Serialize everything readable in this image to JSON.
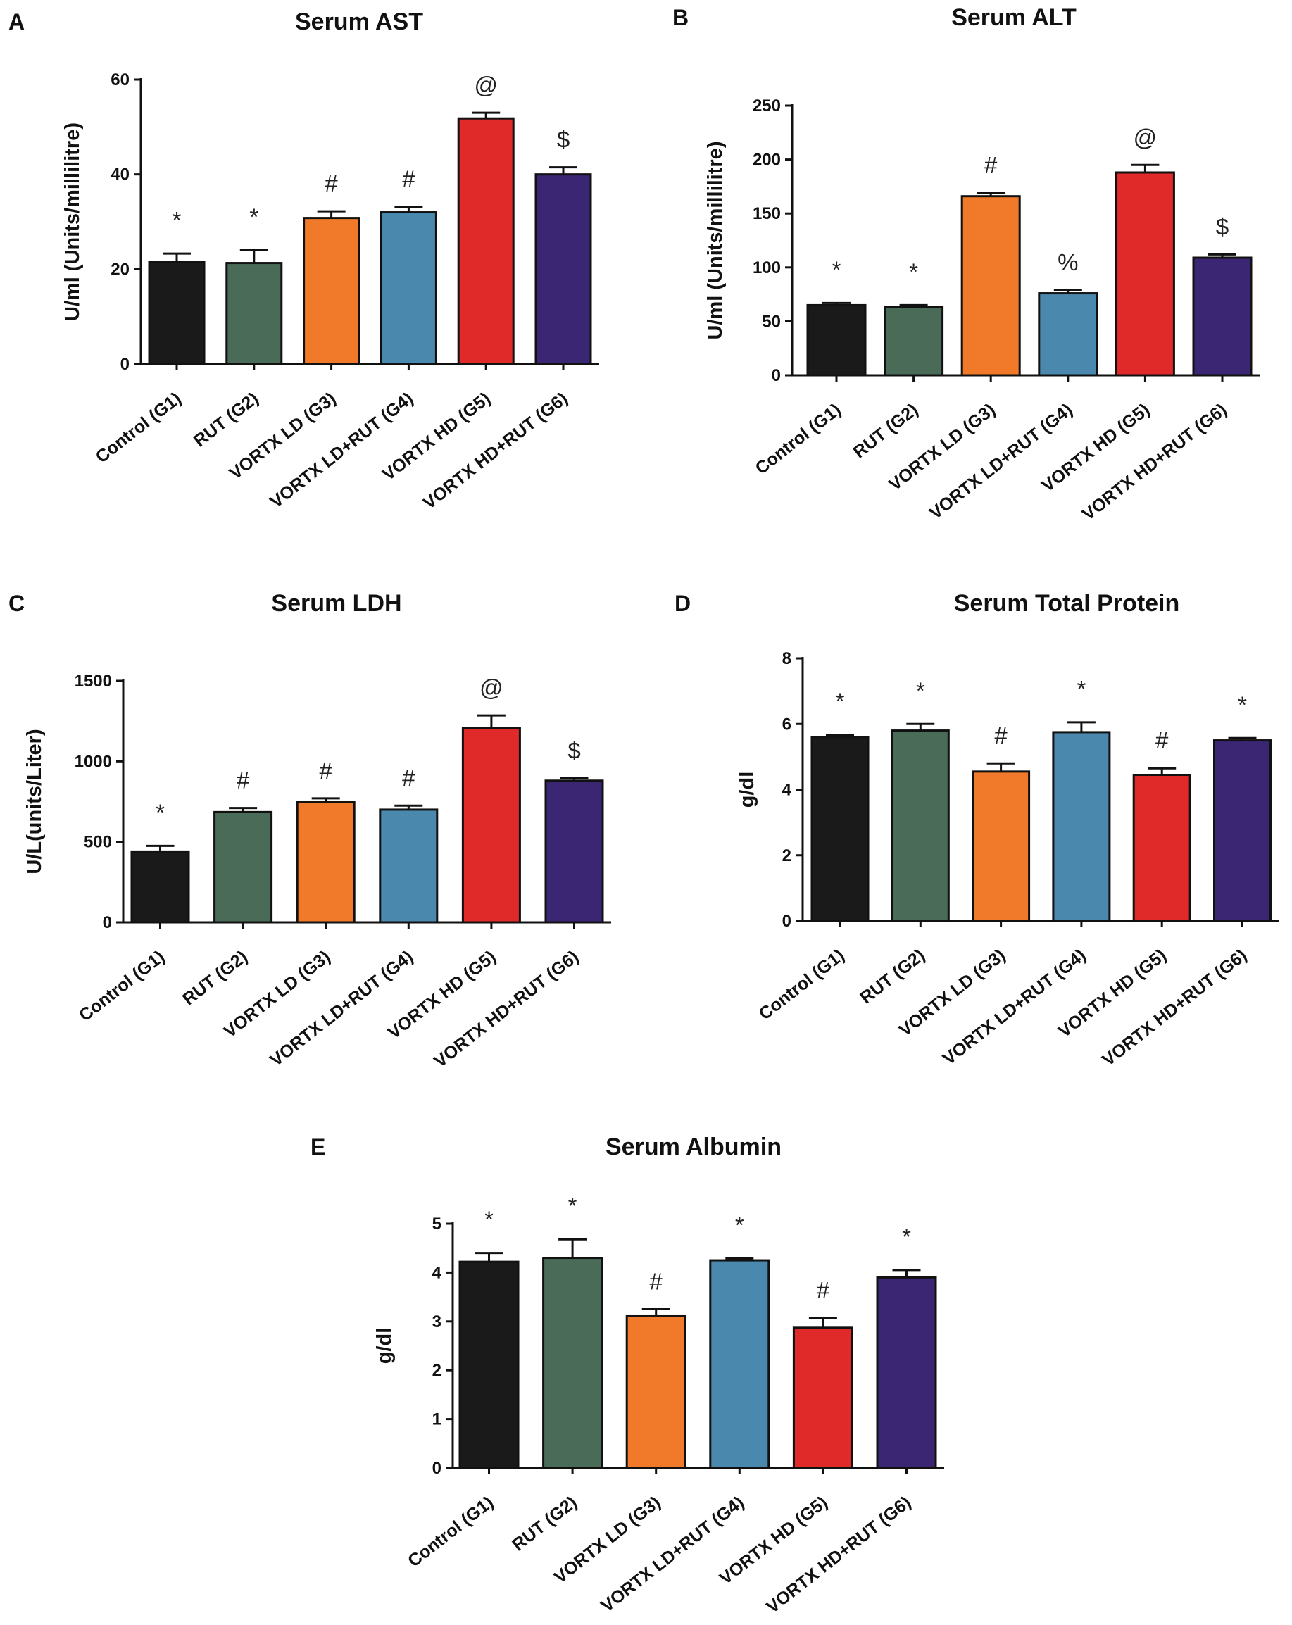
{
  "panels": [
    {
      "letter": "A",
      "chart_data": {
        "type": "bar",
        "title": "Serum AST",
        "xlabel": "",
        "ylabel": "U/ml (Units/millilitre)",
        "ylim": [
          0,
          60
        ],
        "yticks": [
          0,
          20,
          40,
          60
        ],
        "categories": [
          "Control (G1)",
          "RUT (G2)",
          "VORTX LD (G3)",
          "VORTX LD+RUT (G4)",
          "VORTX HD (G5)",
          "VORTX HD+RUT (G6)"
        ],
        "values": [
          21.5,
          21.3,
          30.8,
          32.0,
          51.8,
          40.0
        ],
        "errors": [
          1.8,
          2.7,
          1.4,
          1.2,
          1.2,
          1.5
        ],
        "annotations": [
          "*",
          "*",
          "#",
          "#",
          "@",
          "$"
        ],
        "colors": [
          "#1a1a1a",
          "#4a6b58",
          "#f07a2a",
          "#4a88ad",
          "#e02a2a",
          "#3b2674"
        ]
      }
    },
    {
      "letter": "B",
      "chart_data": {
        "type": "bar",
        "title": "Serum ALT",
        "xlabel": "",
        "ylabel": "U/ml (Units/millilitre)",
        "ylim": [
          0,
          250
        ],
        "yticks": [
          0,
          50,
          100,
          150,
          200,
          250
        ],
        "categories": [
          "Control (G1)",
          "RUT (G2)",
          "VORTX LD (G3)",
          "VORTX LD+RUT (G4)",
          "VORTX HD (G5)",
          "VORTX HD+RUT (G6)"
        ],
        "values": [
          65,
          63,
          166,
          76,
          188,
          109
        ],
        "errors": [
          2,
          2,
          3,
          3,
          7,
          3
        ],
        "annotations": [
          "*",
          "*",
          "#",
          "%",
          "@",
          "$"
        ],
        "colors": [
          "#1a1a1a",
          "#4a6b58",
          "#f07a2a",
          "#4a88ad",
          "#e02a2a",
          "#3b2674"
        ]
      }
    },
    {
      "letter": "C",
      "chart_data": {
        "type": "bar",
        "title": "Serum LDH",
        "xlabel": "",
        "ylabel": "U/L(units/Liter)",
        "ylim": [
          0,
          1500
        ],
        "yticks": [
          0,
          500,
          1000,
          1500
        ],
        "categories": [
          "Control (G1)",
          "RUT (G2)",
          "VORTX LD (G3)",
          "VORTX LD+RUT (G4)",
          "VORTX HD (G5)",
          "VORTX HD+RUT (G6)"
        ],
        "values": [
          440,
          685,
          750,
          700,
          1205,
          880
        ],
        "errors": [
          35,
          25,
          20,
          25,
          80,
          15
        ],
        "annotations": [
          "*",
          "#",
          "#",
          "#",
          "@",
          "$"
        ],
        "colors": [
          "#1a1a1a",
          "#4a6b58",
          "#f07a2a",
          "#4a88ad",
          "#e02a2a",
          "#3b2674"
        ]
      }
    },
    {
      "letter": "D",
      "chart_data": {
        "type": "bar",
        "title": "Serum Total Protein",
        "xlabel": "",
        "ylabel": "g/dl",
        "ylim": [
          0,
          8
        ],
        "yticks": [
          0,
          2,
          4,
          6,
          8
        ],
        "categories": [
          "Control (G1)",
          "RUT (G2)",
          "VORTX LD (G3)",
          "VORTX LD+RUT (G4)",
          "VORTX HD (G5)",
          "VORTX HD+RUT (G6)"
        ],
        "values": [
          5.6,
          5.8,
          4.55,
          5.75,
          4.45,
          5.5
        ],
        "errors": [
          0.07,
          0.2,
          0.25,
          0.3,
          0.2,
          0.07
        ],
        "annotations": [
          "*",
          "*",
          "#",
          "*",
          "#",
          "*"
        ],
        "colors": [
          "#1a1a1a",
          "#4a6b58",
          "#f07a2a",
          "#4a88ad",
          "#e02a2a",
          "#3b2674"
        ]
      }
    },
    {
      "letter": "E",
      "chart_data": {
        "type": "bar",
        "title": "Serum Albumin",
        "xlabel": "",
        "ylabel": "g/dl",
        "ylim": [
          0,
          5
        ],
        "yticks": [
          0,
          1,
          2,
          3,
          4,
          5
        ],
        "categories": [
          "Control (G1)",
          "RUT (G2)",
          "VORTX LD (G3)",
          "VORTX LD+RUT (G4)",
          "VORTX HD (G5)",
          "VORTX HD+RUT (G6)"
        ],
        "values": [
          4.22,
          4.3,
          3.12,
          4.25,
          2.87,
          3.9
        ],
        "errors": [
          0.18,
          0.38,
          0.13,
          0.04,
          0.2,
          0.15
        ],
        "annotations": [
          "*",
          "*",
          "#",
          "*",
          "#",
          "*"
        ],
        "colors": [
          "#1a1a1a",
          "#4a6b58",
          "#f07a2a",
          "#4a88ad",
          "#e02a2a",
          "#3b2674"
        ]
      }
    }
  ]
}
